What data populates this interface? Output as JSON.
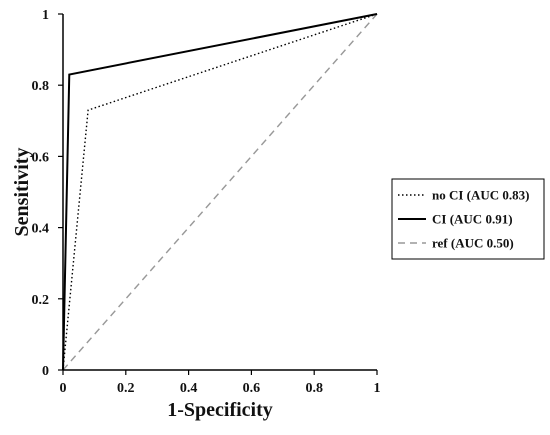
{
  "chart_data": {
    "type": "line",
    "title": "",
    "xlabel": "1-Specificity",
    "ylabel": "Sensitivity",
    "xlim": [
      0,
      1
    ],
    "ylim": [
      0,
      1
    ],
    "xticks": [
      "0",
      "0.2",
      "0.4",
      "0.6",
      "0.8",
      "1"
    ],
    "yticks": [
      "0",
      "0.2",
      "0.4",
      "0.6",
      "0.8",
      "1"
    ],
    "grid": false,
    "legend_position": "right",
    "series": [
      {
        "name": "no CI (AUC 0.83)",
        "style": "dotted",
        "color": "#000000",
        "x": [
          0,
          0.08,
          1
        ],
        "y": [
          0,
          0.73,
          1
        ]
      },
      {
        "name": "CI (AUC 0.91)",
        "style": "solid",
        "color": "#000000",
        "x": [
          0,
          0.02,
          1
        ],
        "y": [
          0,
          0.83,
          1
        ]
      },
      {
        "name": "ref (AUC 0.50)",
        "style": "dashed",
        "color": "#999999",
        "x": [
          0,
          1
        ],
        "y": [
          0,
          1
        ]
      }
    ]
  }
}
